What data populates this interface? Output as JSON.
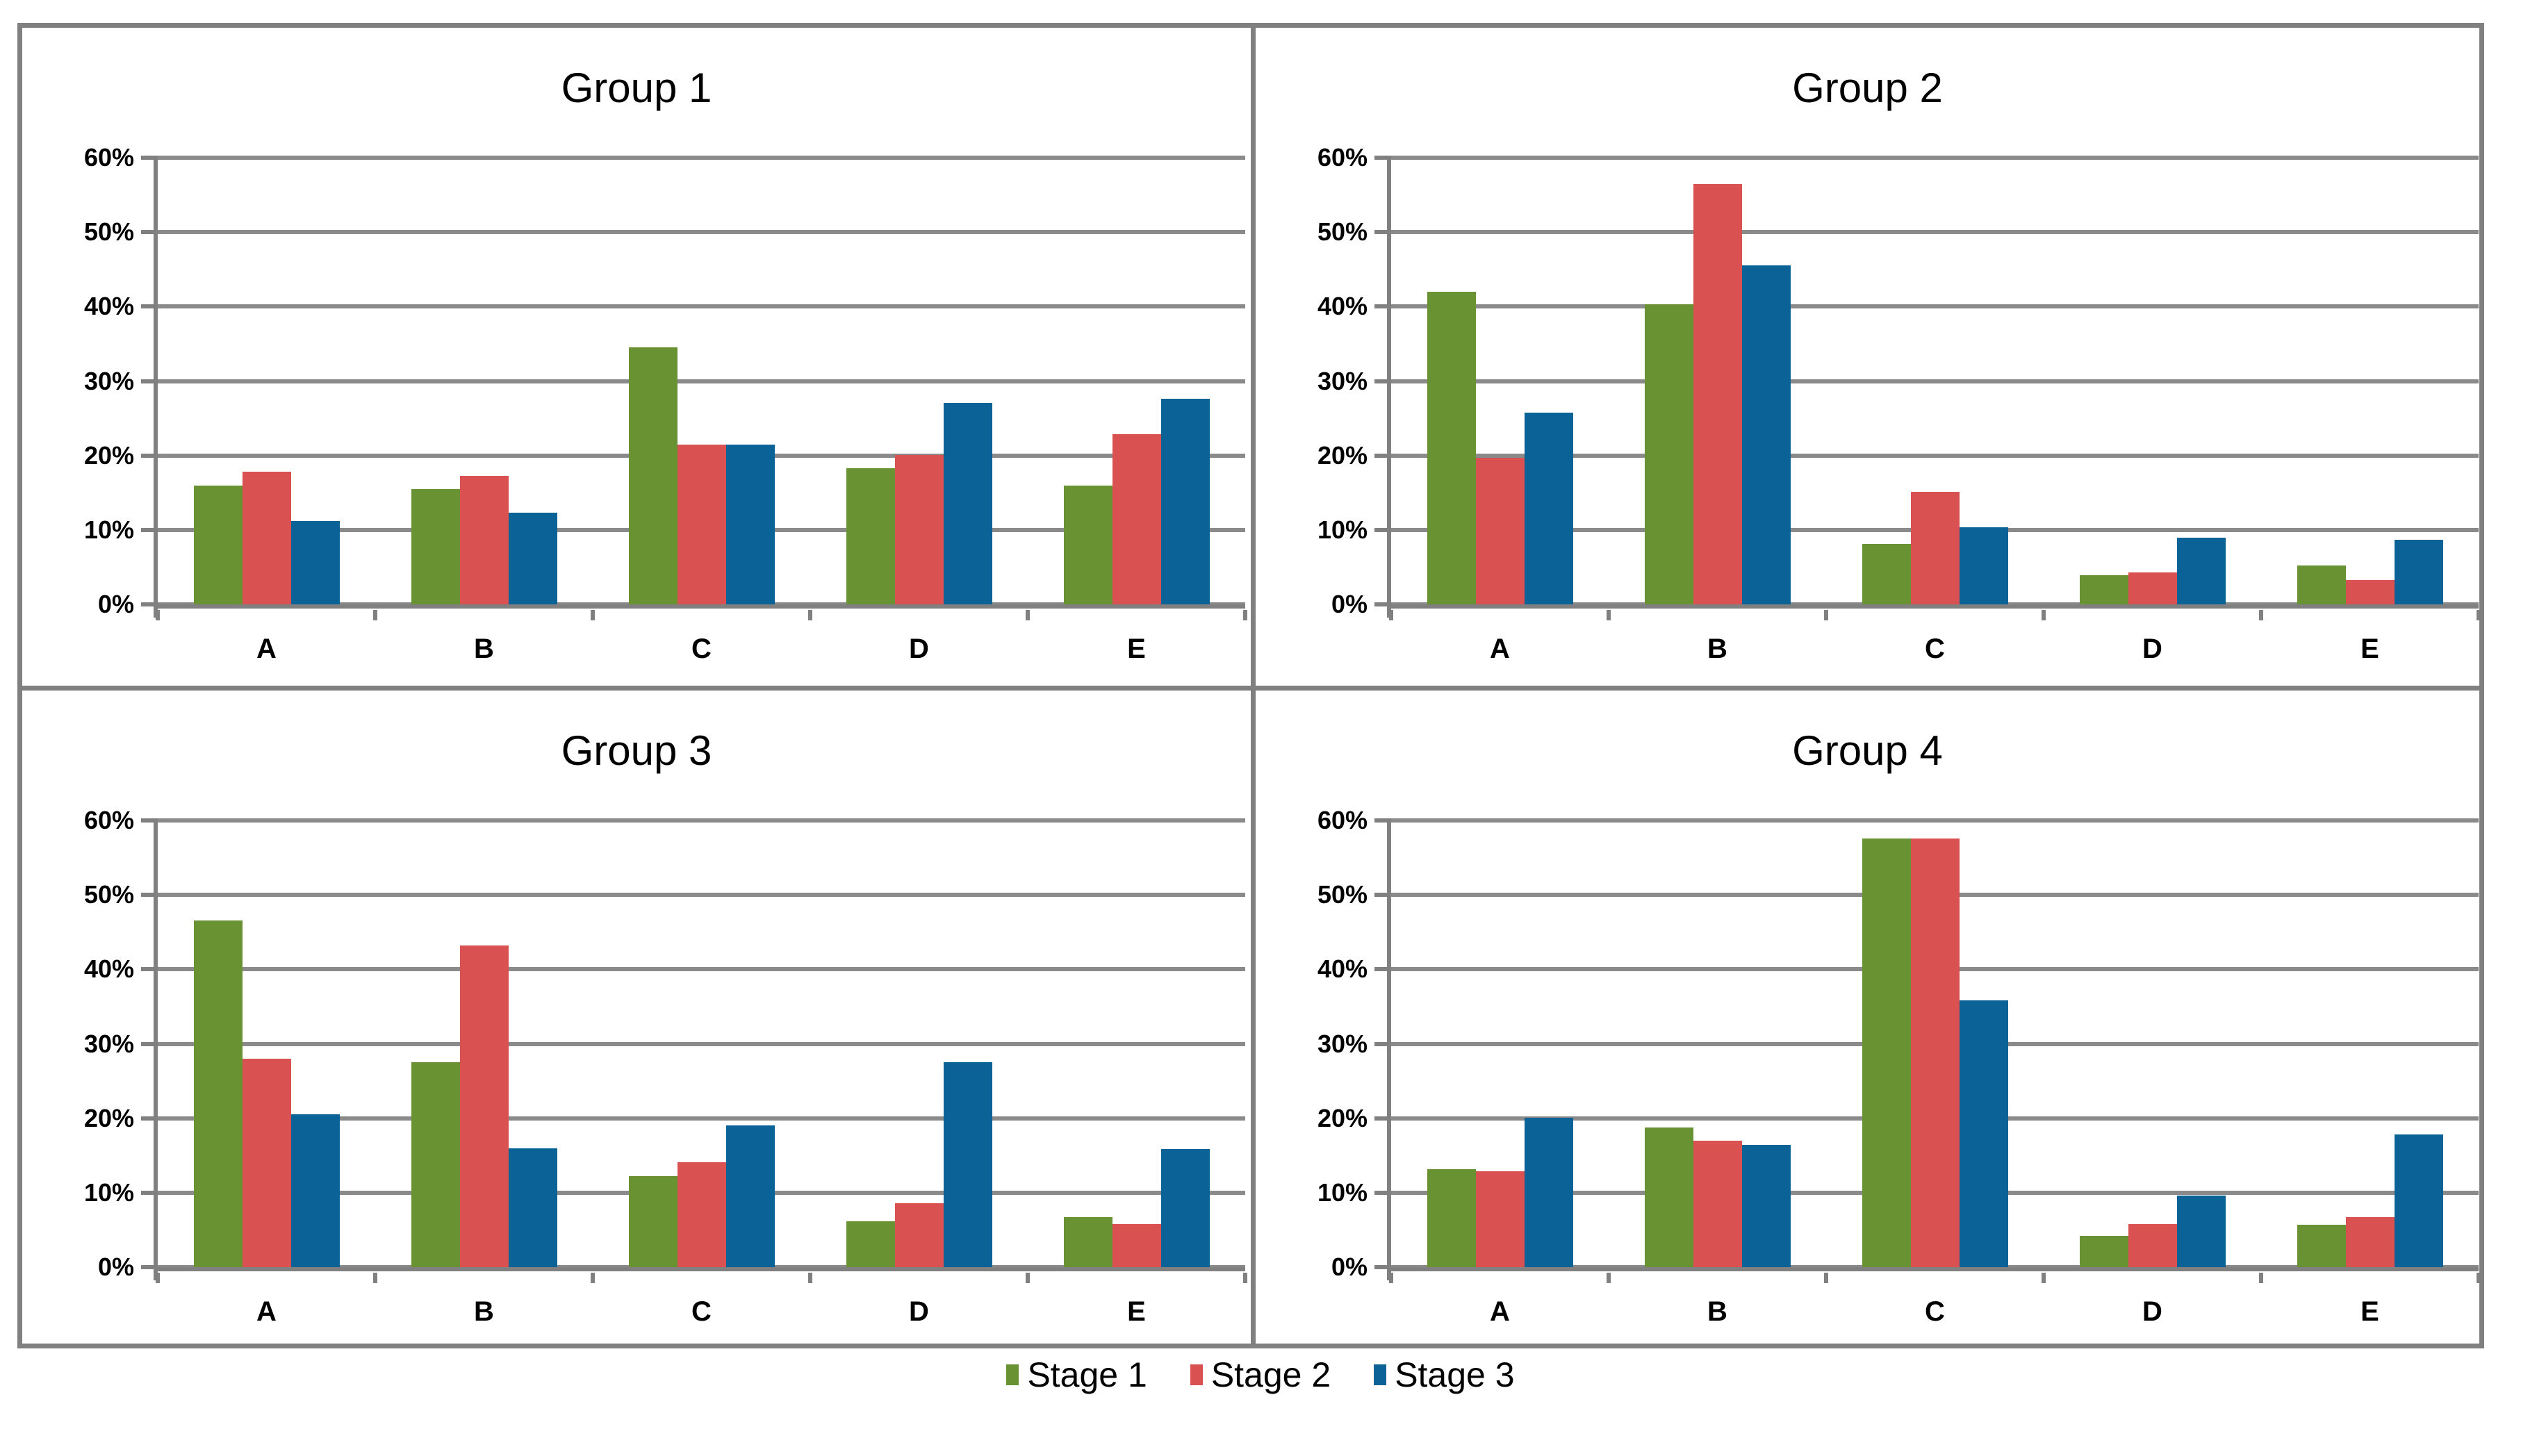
{
  "axis": {
    "y_ticks": [
      "0%",
      "10%",
      "20%",
      "30%",
      "40%",
      "50%",
      "60%"
    ],
    "ylim": [
      0,
      60
    ],
    "grid_color": "#8a8a8a",
    "axis_color": "#808080"
  },
  "legend": {
    "position": "bottom-center",
    "items": [
      {
        "label": "Stage 1",
        "color": "#699332"
      },
      {
        "label": "Stage 2",
        "color": "#da5152"
      },
      {
        "label": "Stage 3",
        "color": "#0a6296"
      }
    ]
  },
  "chart_data": [
    {
      "type": "bar",
      "title": "Group 1",
      "categories": [
        "A",
        "B",
        "C",
        "D",
        "E"
      ],
      "ylim": [
        0,
        60
      ],
      "series": [
        {
          "name": "Stage 1",
          "color": "#699332",
          "values": [
            16.0,
            15.5,
            34.5,
            18.3,
            16.0
          ]
        },
        {
          "name": "Stage 2",
          "color": "#da5152",
          "values": [
            17.8,
            17.3,
            21.5,
            20.1,
            22.9
          ]
        },
        {
          "name": "Stage 3",
          "color": "#0a6296",
          "values": [
            11.2,
            12.3,
            21.5,
            27.1,
            27.6
          ]
        }
      ]
    },
    {
      "type": "bar",
      "title": "Group 2",
      "categories": [
        "A",
        "B",
        "C",
        "D",
        "E"
      ],
      "ylim": [
        0,
        60
      ],
      "series": [
        {
          "name": "Stage 1",
          "color": "#699332",
          "values": [
            42.0,
            40.3,
            8.1,
            3.9,
            5.2
          ]
        },
        {
          "name": "Stage 2",
          "color": "#da5152",
          "values": [
            19.7,
            56.5,
            15.1,
            4.3,
            3.3
          ]
        },
        {
          "name": "Stage 3",
          "color": "#0a6296",
          "values": [
            25.8,
            45.5,
            10.4,
            9.0,
            8.7
          ]
        }
      ]
    },
    {
      "type": "bar",
      "title": "Group 3",
      "categories": [
        "A",
        "B",
        "C",
        "D",
        "E"
      ],
      "ylim": [
        0,
        60
      ],
      "series": [
        {
          "name": "Stage 1",
          "color": "#699332",
          "values": [
            46.6,
            27.5,
            12.2,
            6.2,
            6.7
          ]
        },
        {
          "name": "Stage 2",
          "color": "#da5152",
          "values": [
            28.0,
            43.2,
            14.1,
            8.6,
            5.8
          ]
        },
        {
          "name": "Stage 3",
          "color": "#0a6296",
          "values": [
            20.5,
            16.0,
            19.0,
            27.5,
            15.9
          ]
        }
      ]
    },
    {
      "type": "bar",
      "title": "Group 4",
      "categories": [
        "A",
        "B",
        "C",
        "D",
        "E"
      ],
      "ylim": [
        0,
        60
      ],
      "series": [
        {
          "name": "Stage 1",
          "color": "#699332",
          "values": [
            13.2,
            18.8,
            57.6,
            4.2,
            5.7
          ]
        },
        {
          "name": "Stage 2",
          "color": "#da5152",
          "values": [
            12.9,
            17.0,
            57.6,
            5.8,
            6.7
          ]
        },
        {
          "name": "Stage 3",
          "color": "#0a6296",
          "values": [
            20.1,
            16.4,
            35.8,
            9.6,
            17.8
          ]
        }
      ]
    }
  ]
}
